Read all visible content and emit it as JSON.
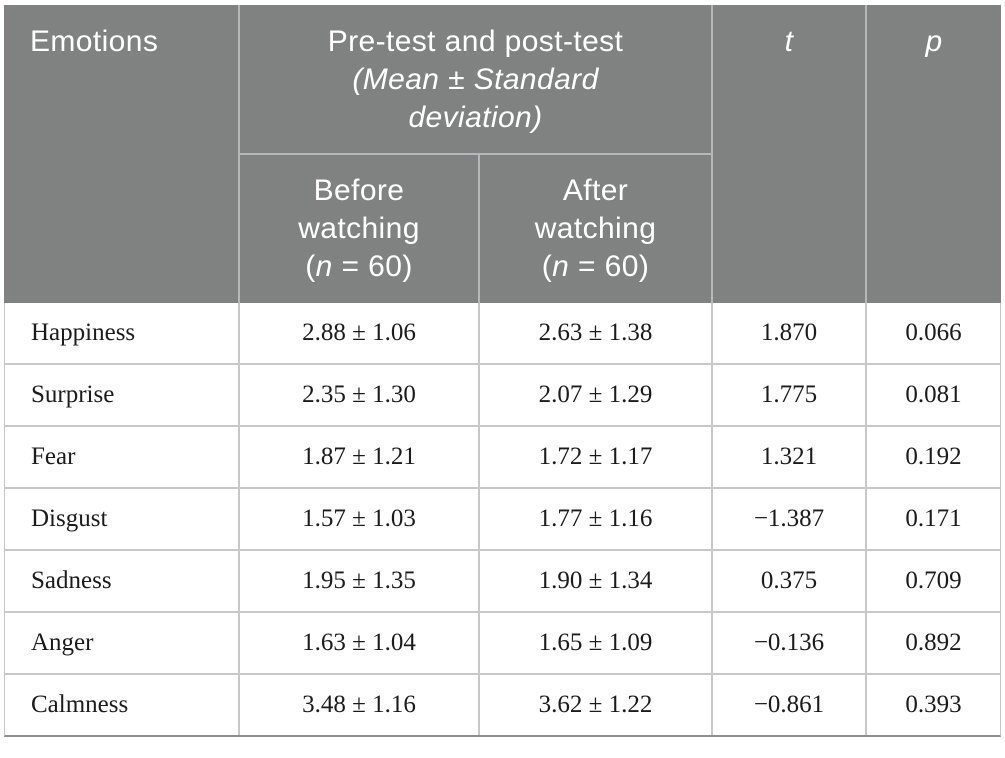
{
  "colors": {
    "header_bg": "#808181",
    "header_text": "#ffffff",
    "header_divider": "#b5b8b8",
    "body_divider": "#c8c8c8",
    "bottom_rule": "#8e8e8e",
    "body_text": "#1b1b1b"
  },
  "table": {
    "header": {
      "emotions": "Emotions",
      "prepost": {
        "line1": "Pre-test and post-test",
        "line2": "(Mean ± Standard",
        "line3": "deviation)"
      },
      "t": "t",
      "p": "p",
      "before": {
        "line1": "Before",
        "line2": "watching",
        "n_open": "(",
        "n_sym": "n",
        "n_rest": " = 60)"
      },
      "after": {
        "line1": "After",
        "line2": "watching",
        "n_open": "(",
        "n_sym": "n",
        "n_rest": " = 60)"
      }
    },
    "rows": [
      {
        "emotion": "Happiness",
        "before": "2.88 ± 1.06",
        "after": "2.63 ± 1.38",
        "t": "1.870",
        "p": "0.066"
      },
      {
        "emotion": "Surprise",
        "before": "2.35 ± 1.30",
        "after": "2.07 ± 1.29",
        "t": "1.775",
        "p": "0.081"
      },
      {
        "emotion": "Fear",
        "before": "1.87 ± 1.21",
        "after": "1.72 ± 1.17",
        "t": "1.321",
        "p": "0.192"
      },
      {
        "emotion": "Disgust",
        "before": "1.57 ± 1.03",
        "after": "1.77 ± 1.16",
        "t": "−1.387",
        "p": "0.171"
      },
      {
        "emotion": "Sadness",
        "before": "1.95 ± 1.35",
        "after": "1.90 ± 1.34",
        "t": "0.375",
        "p": "0.709"
      },
      {
        "emotion": "Anger",
        "before": "1.63 ± 1.04",
        "after": "1.65 ± 1.09",
        "t": "−0.136",
        "p": "0.892"
      },
      {
        "emotion": "Calmness",
        "before": "3.48 ± 1.16",
        "after": "3.62 ± 1.22",
        "t": "−0.861",
        "p": "0.393"
      }
    ]
  }
}
